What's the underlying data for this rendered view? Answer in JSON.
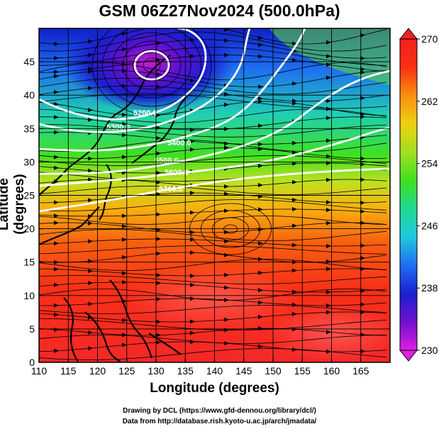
{
  "title": "GSM 06Z27Nov2024 (500.0hPa)",
  "axes": {
    "xlabel": "Longitude (degrees)",
    "ylabel": "Latitude  (degrees)",
    "x_ticks": [
      "110",
      "115",
      "120",
      "125",
      "130",
      "135",
      "140",
      "145",
      "150",
      "155",
      "160",
      "165"
    ],
    "y_ticks": [
      "0",
      "5",
      "10",
      "15",
      "20",
      "25",
      "30",
      "35",
      "40",
      "45"
    ]
  },
  "colorbar": {
    "ticks": [
      "230",
      "238",
      "246",
      "254",
      "262",
      "270"
    ],
    "stops": [
      "#e020e0",
      "#7010d0",
      "#1a20d0",
      "#1e6ef0",
      "#20c8e0",
      "#20d890",
      "#40e020",
      "#a0e020",
      "#f0d010",
      "#f89010",
      "#f83010",
      "#f02020"
    ]
  },
  "contour_labels": [
    "5200.0",
    "5300.0",
    "5400.0",
    "5500.0",
    "5600.0",
    "5700.0"
  ],
  "credits": {
    "line1": "Drawing by DCL (https://www.gfd-dennou.org/library/dcl/)",
    "line2": "Data from http://database.rish.kyoto-u.ac.jp/arch/jmadata/"
  }
}
